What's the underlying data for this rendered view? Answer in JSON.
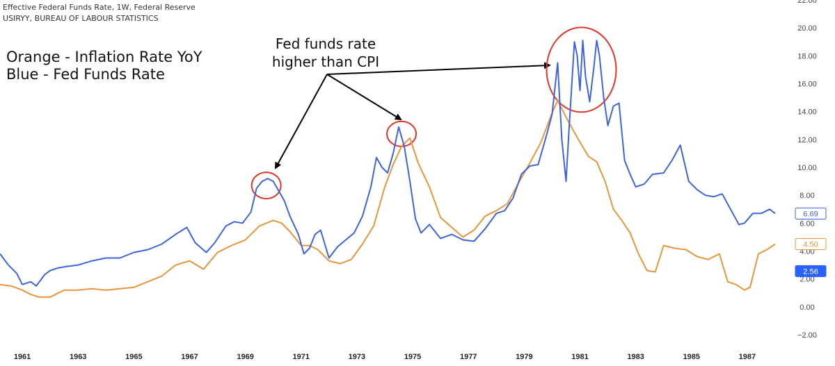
{
  "header": {
    "line1": "Effective Federal Funds Rate, 1W, Federal Reserve",
    "line2": "USIRYY, BUREAU OF LABOUR STATISTICS"
  },
  "annotations": {
    "legend_line1": "Orange - Inflation Rate YoY",
    "legend_line2": "Blue - Fed Funds Rate",
    "callout_line1": "Fed funds rate",
    "callout_line2": "higher than CPI"
  },
  "colors": {
    "fed_funds": "#3d63dd",
    "inflation": "#e8953b",
    "circle": "#e0352b",
    "badge_last": "#2962ff",
    "grid_text": "#444444"
  },
  "chart_data": {
    "type": "line",
    "title": "",
    "xlabel": "",
    "ylabel": "",
    "x_tick_labels": [
      "1961",
      "1963",
      "1965",
      "1967",
      "1969",
      "1971",
      "1973",
      "1975",
      "1977",
      "1979",
      "1981",
      "1983",
      "1985",
      "1987"
    ],
    "y_tick_labels": [
      "−2.00",
      "0.00",
      "2.00",
      "4.00",
      "6.00",
      "8.00",
      "10.00",
      "12.00",
      "14.00",
      "16.00",
      "18.00",
      "20.00",
      "22.00"
    ],
    "xlim": [
      1960.2,
      1988.1
    ],
    "ylim": [
      -2,
      22
    ],
    "grid": false,
    "price_badges": [
      {
        "value": "6.69",
        "style": "outline-blue"
      },
      {
        "value": "4.50",
        "style": "outline-orange"
      },
      {
        "value": "2.56",
        "style": "filled-blue"
      }
    ],
    "series": [
      {
        "name": "Fed Funds Rate",
        "x": [
          1960.2,
          1960.5,
          1960.8,
          1961.0,
          1961.3,
          1961.5,
          1961.8,
          1962.0,
          1962.3,
          1962.6,
          1963.0,
          1963.5,
          1964.0,
          1964.5,
          1965.0,
          1965.5,
          1966.0,
          1966.5,
          1966.9,
          1967.2,
          1967.6,
          1967.9,
          1968.3,
          1968.6,
          1968.9,
          1969.2,
          1969.4,
          1969.6,
          1969.8,
          1970.0,
          1970.2,
          1970.4,
          1970.6,
          1970.9,
          1971.1,
          1971.3,
          1971.5,
          1971.7,
          1972.0,
          1972.3,
          1972.6,
          1972.9,
          1973.2,
          1973.5,
          1973.7,
          1973.9,
          1974.1,
          1974.3,
          1974.5,
          1974.7,
          1974.9,
          1975.1,
          1975.3,
          1975.6,
          1976.0,
          1976.4,
          1976.8,
          1977.2,
          1977.6,
          1978.0,
          1978.3,
          1978.6,
          1978.9,
          1979.2,
          1979.5,
          1979.8,
          1980.0,
          1980.2,
          1980.35,
          1980.5,
          1980.6,
          1980.8,
          1980.9,
          1981.0,
          1981.1,
          1981.2,
          1981.35,
          1981.5,
          1981.6,
          1981.7,
          1981.85,
          1982.0,
          1982.2,
          1982.4,
          1982.6,
          1982.8,
          1983.0,
          1983.3,
          1983.6,
          1984.0,
          1984.3,
          1984.6,
          1984.9,
          1985.2,
          1985.5,
          1985.8,
          1986.1,
          1986.4,
          1986.7,
          1986.9,
          1987.2,
          1987.5,
          1987.8,
          1988.0
        ],
        "y": [
          3.8,
          3.0,
          2.4,
          1.6,
          1.8,
          1.5,
          2.3,
          2.6,
          2.8,
          2.9,
          3.0,
          3.3,
          3.5,
          3.5,
          3.9,
          4.1,
          4.5,
          5.2,
          5.7,
          4.6,
          3.9,
          4.6,
          5.8,
          6.1,
          6.0,
          6.8,
          8.5,
          9.0,
          9.2,
          9.0,
          8.3,
          7.6,
          6.5,
          5.2,
          3.8,
          4.2,
          5.2,
          5.5,
          3.5,
          4.3,
          4.8,
          5.3,
          6.5,
          8.6,
          10.7,
          10.0,
          9.6,
          11.0,
          12.9,
          11.5,
          9.0,
          6.3,
          5.3,
          5.9,
          4.9,
          5.2,
          4.8,
          4.7,
          5.6,
          6.7,
          6.9,
          7.8,
          9.5,
          10.1,
          10.2,
          12.3,
          13.8,
          17.5,
          12.0,
          9.0,
          12.5,
          19.0,
          18.0,
          15.5,
          19.1,
          16.5,
          14.7,
          17.2,
          19.1,
          18.0,
          15.0,
          13.0,
          14.4,
          14.6,
          10.5,
          9.5,
          8.6,
          8.8,
          9.5,
          9.6,
          10.5,
          11.6,
          9.0,
          8.4,
          8.0,
          7.9,
          8.1,
          7.0,
          5.9,
          6.0,
          6.7,
          6.7,
          7.0,
          6.7
        ]
      },
      {
        "name": "Inflation Rate YoY",
        "x": [
          1960.2,
          1960.6,
          1961.0,
          1961.3,
          1961.6,
          1962.0,
          1962.5,
          1963.0,
          1963.5,
          1964.0,
          1964.5,
          1965.0,
          1965.5,
          1966.0,
          1966.5,
          1967.0,
          1967.5,
          1968.0,
          1968.5,
          1969.0,
          1969.5,
          1970.0,
          1970.3,
          1970.6,
          1971.0,
          1971.3,
          1971.6,
          1972.0,
          1972.4,
          1972.8,
          1973.2,
          1973.6,
          1974.0,
          1974.3,
          1974.6,
          1974.9,
          1975.2,
          1975.6,
          1976.0,
          1976.4,
          1976.8,
          1977.2,
          1977.6,
          1978.0,
          1978.4,
          1978.8,
          1979.2,
          1979.6,
          1980.0,
          1980.2,
          1980.5,
          1980.8,
          1981.0,
          1981.3,
          1981.6,
          1981.9,
          1982.2,
          1982.5,
          1982.8,
          1983.1,
          1983.4,
          1983.7,
          1984.0,
          1984.4,
          1984.8,
          1985.2,
          1985.6,
          1986.0,
          1986.3,
          1986.6,
          1986.9,
          1987.1,
          1987.4,
          1987.7,
          1988.0
        ],
        "y": [
          1.6,
          1.5,
          1.2,
          0.9,
          0.7,
          0.7,
          1.2,
          1.2,
          1.3,
          1.2,
          1.3,
          1.4,
          1.8,
          2.2,
          3.0,
          3.3,
          2.7,
          3.9,
          4.4,
          4.8,
          5.8,
          6.2,
          6.0,
          5.4,
          4.4,
          4.4,
          4.1,
          3.3,
          3.1,
          3.4,
          4.5,
          5.8,
          8.6,
          10.2,
          11.5,
          12.1,
          10.3,
          8.6,
          6.4,
          5.7,
          5.0,
          5.5,
          6.5,
          6.9,
          7.4,
          8.9,
          10.3,
          11.8,
          13.9,
          14.8,
          13.6,
          12.5,
          11.8,
          10.8,
          10.4,
          9.0,
          7.0,
          6.2,
          5.3,
          3.8,
          2.6,
          2.5,
          4.4,
          4.2,
          4.1,
          3.6,
          3.4,
          3.8,
          1.8,
          1.6,
          1.2,
          1.4,
          3.8,
          4.1,
          4.5
        ]
      }
    ]
  }
}
